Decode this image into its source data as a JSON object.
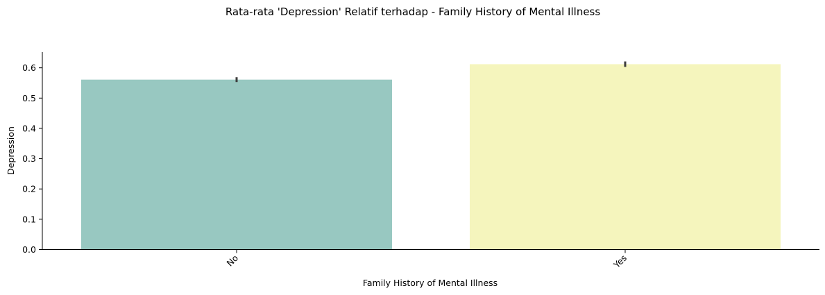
{
  "chart_data": {
    "type": "bar",
    "title": "Rata-rata 'Depression' Relatif terhadap - Family History of Mental Illness",
    "xlabel": "Family History of Mental Illness",
    "ylabel": "Depression",
    "categories": [
      "No",
      "Yes"
    ],
    "values": [
      0.561,
      0.612
    ],
    "error_bars": [
      [
        0.553,
        0.569
      ],
      [
        0.603,
        0.621
      ]
    ],
    "ylim": [
      0,
      0.652
    ],
    "yticks": [
      "0.0",
      "0.1",
      "0.2",
      "0.3",
      "0.4",
      "0.5",
      "0.6"
    ],
    "colors": [
      "#98c8c1",
      "#f5f5bd"
    ],
    "error_bar_color": "#3d3d3d",
    "grid": false,
    "legend": "none"
  }
}
